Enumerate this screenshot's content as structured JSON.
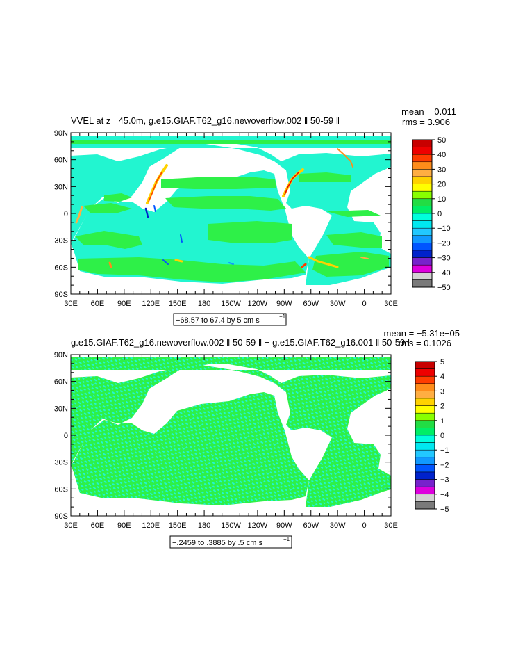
{
  "chart_data": [
    {
      "type": "heatmap",
      "title": "VVEL at z=  45.0m, g.e15.GIAF.T62_g16.newoverflow.002 ‖ 50-59 ‖",
      "mean_label": "mean = 0.011",
      "rms_label": "rms = 3.906",
      "range_label": "−68.57 to 67.4 by 5 cm s",
      "range_exp": "−1",
      "x_ticks": [
        "30E",
        "60E",
        "90E",
        "120E",
        "150E",
        "180",
        "150W",
        "120W",
        "90W",
        "60W",
        "30W",
        "0",
        "30E"
      ],
      "y_ticks": [
        "90N",
        "60N",
        "30N",
        "0",
        "30S",
        "60S",
        "90S"
      ],
      "xlim": [
        30,
        390
      ],
      "ylim": [
        -90,
        90
      ],
      "colorbar_labels": [
        "50",
        "40",
        "30",
        "20",
        "10",
        "0",
        "−10",
        "−20",
        "−30",
        "−40",
        "−50"
      ],
      "colorbar_colors": [
        "#c80000",
        "#ee0000",
        "#ff3c00",
        "#ff8c1a",
        "#ffae42",
        "#ffd200",
        "#ffff00",
        "#88ff00",
        "#22dd44",
        "#00ee66",
        "#00ffdd",
        "#00e8f0",
        "#22c8ff",
        "#1199ff",
        "#0055ff",
        "#0022cc",
        "#7722cc",
        "#dd00dd",
        "#d2d2d2",
        "#7a7a7a"
      ],
      "ocean_fill": "#22f5d0",
      "band_fill": "#2ef048"
    },
    {
      "type": "heatmap",
      "title": "g.e15.GIAF.T62_g16.newoverflow.002 ‖ 50-59 ‖ − g.e15.GIAF.T62_g16.001 ‖ 50-59 ‖",
      "mean_label": "mean = −5.31e−05",
      "rms_label": "rms = 0.1026",
      "range_label": "−.2459 to .3885 by .5 cm s",
      "range_exp": "−1",
      "x_ticks": [
        "30E",
        "60E",
        "90E",
        "120E",
        "150E",
        "180",
        "150W",
        "120W",
        "90W",
        "60W",
        "30W",
        "0",
        "30E"
      ],
      "y_ticks": [
        "90N",
        "60N",
        "30N",
        "0",
        "30S",
        "60S",
        "90S"
      ],
      "xlim": [
        30,
        390
      ],
      "ylim": [
        -90,
        90
      ],
      "colorbar_labels": [
        "5",
        "4",
        "3",
        "2",
        "1",
        "0",
        "−1",
        "−2",
        "−3",
        "−4",
        "−5"
      ],
      "colorbar_colors": [
        "#c80000",
        "#ee0000",
        "#ff3c00",
        "#ff8c1a",
        "#ffae42",
        "#ffd200",
        "#ffff00",
        "#88ff00",
        "#22dd44",
        "#00ee66",
        "#00ffdd",
        "#00e8f0",
        "#22c8ff",
        "#1199ff",
        "#0055ff",
        "#0022cc",
        "#7722cc",
        "#dd00dd",
        "#d2d2d2",
        "#7a7a7a"
      ],
      "ocean_fill": "#2ef048",
      "band_fill": "#22f5d0"
    }
  ]
}
